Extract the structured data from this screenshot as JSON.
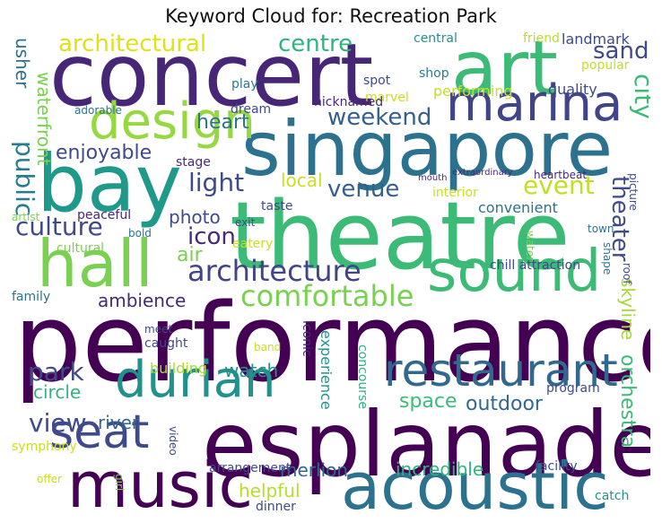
{
  "title": "Keyword Cloud for: Recreation Park",
  "words": [
    {
      "text": "performance",
      "color": "#440154"
    },
    {
      "text": "theatre",
      "color": "#3bbb75"
    },
    {
      "text": "esplanade",
      "color": "#440154"
    },
    {
      "text": "concert",
      "color": "#482677"
    },
    {
      "text": "singapore",
      "color": "#2c728e"
    },
    {
      "text": "bay",
      "color": "#1f9a8a"
    },
    {
      "text": "art",
      "color": "#3bbb75"
    },
    {
      "text": "acoustic",
      "color": "#2c728e"
    },
    {
      "text": "music",
      "color": "#440154"
    },
    {
      "text": "sound",
      "color": "#3bbb75"
    },
    {
      "text": "marina",
      "color": "#414487"
    },
    {
      "text": "restaurant",
      "color": "#31688e"
    },
    {
      "text": "durian",
      "color": "#21918c"
    },
    {
      "text": "hall",
      "color": "#7ad151"
    },
    {
      "text": "design",
      "color": "#95d840"
    },
    {
      "text": "seat",
      "color": "#3e4a89"
    },
    {
      "text": "architecture",
      "color": "#414487"
    },
    {
      "text": "comfortable",
      "color": "#7ad151"
    },
    {
      "text": "event",
      "color": "#c2df23"
    },
    {
      "text": "city",
      "color": "#3bbb75"
    },
    {
      "text": "theater",
      "color": "#3e4a89"
    },
    {
      "text": "weekend",
      "color": "#355f8d"
    },
    {
      "text": "culture",
      "color": "#3e4a89"
    },
    {
      "text": "venue",
      "color": "#355f8d"
    },
    {
      "text": "public",
      "color": "#287c8e"
    },
    {
      "text": "light",
      "color": "#3e4a89"
    },
    {
      "text": "architectural",
      "color": "#dde318"
    },
    {
      "text": "centre",
      "color": "#2fb47c"
    },
    {
      "text": "sand",
      "color": "#3e4a89"
    },
    {
      "text": "heart",
      "color": "#2c728e"
    },
    {
      "text": "icon",
      "color": "#482878"
    },
    {
      "text": "park",
      "color": "#3e4a89"
    },
    {
      "text": "view",
      "color": "#3e4a89"
    },
    {
      "text": "enjoyable",
      "color": "#3e4a89"
    },
    {
      "text": "orchestra",
      "color": "#3bbb75"
    },
    {
      "text": "skyline",
      "color": "#a5db36"
    },
    {
      "text": "waterfront",
      "color": "#7ad151"
    },
    {
      "text": "usher",
      "color": "#2c728e"
    },
    {
      "text": "ambience",
      "color": "#482878"
    },
    {
      "text": "space",
      "color": "#3bbb75"
    },
    {
      "text": "outdoor",
      "color": "#31688e"
    },
    {
      "text": "river",
      "color": "#31688e"
    },
    {
      "text": "helpful",
      "color": "#b5de2b"
    },
    {
      "text": "merlion",
      "color": "#31688e"
    },
    {
      "text": "incredible",
      "color": "#2fb47c"
    },
    {
      "text": "air",
      "color": "#7ad151"
    },
    {
      "text": "photo",
      "color": "#3e4a89"
    },
    {
      "text": "local",
      "color": "#c8e020"
    },
    {
      "text": "circle",
      "color": "#2fb47c"
    },
    {
      "text": "watch",
      "color": "#21918c"
    },
    {
      "text": "building",
      "color": "#a5db36"
    },
    {
      "text": "landmark",
      "color": "#3e4a89"
    },
    {
      "text": "central",
      "color": "#21918c"
    },
    {
      "text": "friend",
      "color": "#b5de2b"
    },
    {
      "text": "popular",
      "color": "#c2df23"
    },
    {
      "text": "shop",
      "color": "#287c8e"
    },
    {
      "text": "quality",
      "color": "#3e4a89"
    },
    {
      "text": "performing",
      "color": "#c8e020"
    },
    {
      "text": "spot",
      "color": "#3e4a89"
    },
    {
      "text": "play",
      "color": "#287c8e"
    },
    {
      "text": "marvel",
      "color": "#c8e020"
    },
    {
      "text": "nicknamed",
      "color": "#482878"
    },
    {
      "text": "dream",
      "color": "#3e4a89"
    },
    {
      "text": "adorable",
      "color": "#2c728e"
    },
    {
      "text": "stage",
      "color": "#482878"
    },
    {
      "text": "interior",
      "color": "#c8e020"
    },
    {
      "text": "convenient",
      "color": "#2c728e"
    },
    {
      "text": "mouth",
      "color": "#482878"
    },
    {
      "text": "extraordinary",
      "color": "#482878"
    },
    {
      "text": "heartbeat",
      "color": "#482878"
    },
    {
      "text": "picture",
      "color": "#3e4a89"
    },
    {
      "text": "taste",
      "color": "#3e4a89"
    },
    {
      "text": "peaceful",
      "color": "#482878"
    },
    {
      "text": "exit",
      "color": "#3e4a89"
    },
    {
      "text": "artist",
      "color": "#7ad151"
    },
    {
      "text": "bold",
      "color": "#2c728e"
    },
    {
      "text": "eatery",
      "color": "#c8e020"
    },
    {
      "text": "cultural",
      "color": "#7ad151"
    },
    {
      "text": "town",
      "color": "#2c728e"
    },
    {
      "text": "water",
      "color": "#7ad151"
    },
    {
      "text": "shape",
      "color": "#2c728e"
    },
    {
      "text": "roof",
      "color": "#3e4a89"
    },
    {
      "text": "chill attraction",
      "color": "#3e4a89"
    },
    {
      "text": "family",
      "color": "#2c728e"
    },
    {
      "text": "meet",
      "color": "#3e4a89"
    },
    {
      "text": "caught",
      "color": "#3e4a89"
    },
    {
      "text": "band",
      "color": "#c8e020"
    },
    {
      "text": "iconic",
      "color": "#482878"
    },
    {
      "text": "experience",
      "color": "#21918c"
    },
    {
      "text": "concourse",
      "color": "#2fb47c"
    },
    {
      "text": "program",
      "color": "#3e4a89"
    },
    {
      "text": "video",
      "color": "#3e4a89"
    },
    {
      "text": "symphony",
      "color": "#c8e020"
    },
    {
      "text": "offer",
      "color": "#c8e020"
    },
    {
      "text": "girl",
      "color": "#7ad151"
    },
    {
      "text": "arrangement",
      "color": "#3e4a89"
    },
    {
      "text": "facility",
      "color": "#3e4a89"
    },
    {
      "text": "catch",
      "color": "#21918c"
    },
    {
      "text": "dinner",
      "color": "#3e4a89"
    }
  ]
}
